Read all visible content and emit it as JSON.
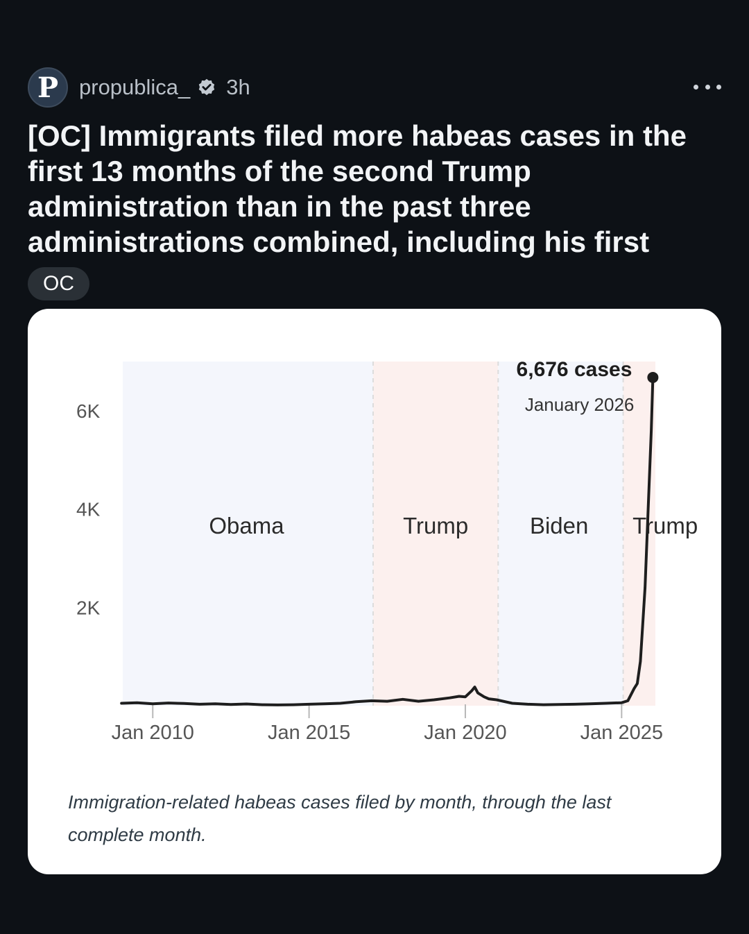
{
  "post": {
    "avatar_letter": "P",
    "username": "propublica_",
    "verified": true,
    "timestamp": "3h",
    "title": "[OC] Immigrants filed more habeas cases in the first 13 months of the second Trump administration than in the past three administrations combined, including his first",
    "flair": "OC"
  },
  "icons": {
    "avatar": "propublica-logo",
    "verified": "verified-badge-icon",
    "more": "more-options-icon"
  },
  "colors": {
    "background": "#0d1116",
    "card": "#ffffff",
    "democrat_band": "#f4f6fc",
    "republican_band": "#fcf0ee",
    "line": "#1e1e1e"
  },
  "chart_data": {
    "type": "line",
    "y_ticks": [
      {
        "value": 2000,
        "label": "2K"
      },
      {
        "value": 4000,
        "label": "4K"
      },
      {
        "value": 6000,
        "label": "6K"
      }
    ],
    "x_ticks": [
      {
        "value": 2010.0,
        "label": "Jan 2010"
      },
      {
        "value": 2015.0,
        "label": "Jan 2015"
      },
      {
        "value": 2020.0,
        "label": "Jan 2020"
      },
      {
        "value": 2025.0,
        "label": "Jan 2025"
      }
    ],
    "xlim": [
      2009.04,
      2026.08
    ],
    "ylim": [
      0,
      7000
    ],
    "administrations": [
      {
        "name": "Obama",
        "start": 2009.04,
        "end": 2017.05,
        "party": "D"
      },
      {
        "name": "Trump",
        "start": 2017.05,
        "end": 2021.05,
        "party": "R"
      },
      {
        "name": "Biden",
        "start": 2021.05,
        "end": 2025.05,
        "party": "D"
      },
      {
        "name": "Trump",
        "start": 2025.05,
        "end": 2026.08,
        "party": "R"
      }
    ],
    "annotation": {
      "value_label": "6,676 cases",
      "date_label": "January 2026",
      "x": 2026.0,
      "y": 6676
    },
    "series": [
      {
        "values": [
          [
            2009.0,
            50
          ],
          [
            2009.5,
            60
          ],
          [
            2010.0,
            40
          ],
          [
            2010.5,
            55
          ],
          [
            2011.0,
            45
          ],
          [
            2011.5,
            30
          ],
          [
            2012.0,
            40
          ],
          [
            2012.5,
            25
          ],
          [
            2013.0,
            35
          ],
          [
            2013.5,
            20
          ],
          [
            2014.0,
            15
          ],
          [
            2014.5,
            20
          ],
          [
            2015.0,
            30
          ],
          [
            2015.5,
            40
          ],
          [
            2016.0,
            50
          ],
          [
            2016.5,
            80
          ],
          [
            2017.0,
            100
          ],
          [
            2017.5,
            90
          ],
          [
            2018.0,
            130
          ],
          [
            2018.5,
            90
          ],
          [
            2019.0,
            120
          ],
          [
            2019.5,
            160
          ],
          [
            2019.8,
            190
          ],
          [
            2020.0,
            180
          ],
          [
            2020.2,
            300
          ],
          [
            2020.3,
            380
          ],
          [
            2020.4,
            260
          ],
          [
            2020.6,
            180
          ],
          [
            2020.75,
            140
          ],
          [
            2021.0,
            120
          ],
          [
            2021.5,
            50
          ],
          [
            2022.0,
            30
          ],
          [
            2022.5,
            20
          ],
          [
            2023.0,
            25
          ],
          [
            2023.5,
            30
          ],
          [
            2024.0,
            40
          ],
          [
            2024.5,
            50
          ],
          [
            2025.0,
            60
          ],
          [
            2025.2,
            100
          ],
          [
            2025.4,
            350
          ],
          [
            2025.5,
            450
          ],
          [
            2025.6,
            900
          ],
          [
            2025.75,
            2400
          ],
          [
            2025.85,
            4000
          ],
          [
            2025.95,
            5600
          ],
          [
            2026.0,
            6676
          ]
        ]
      }
    ]
  }
}
